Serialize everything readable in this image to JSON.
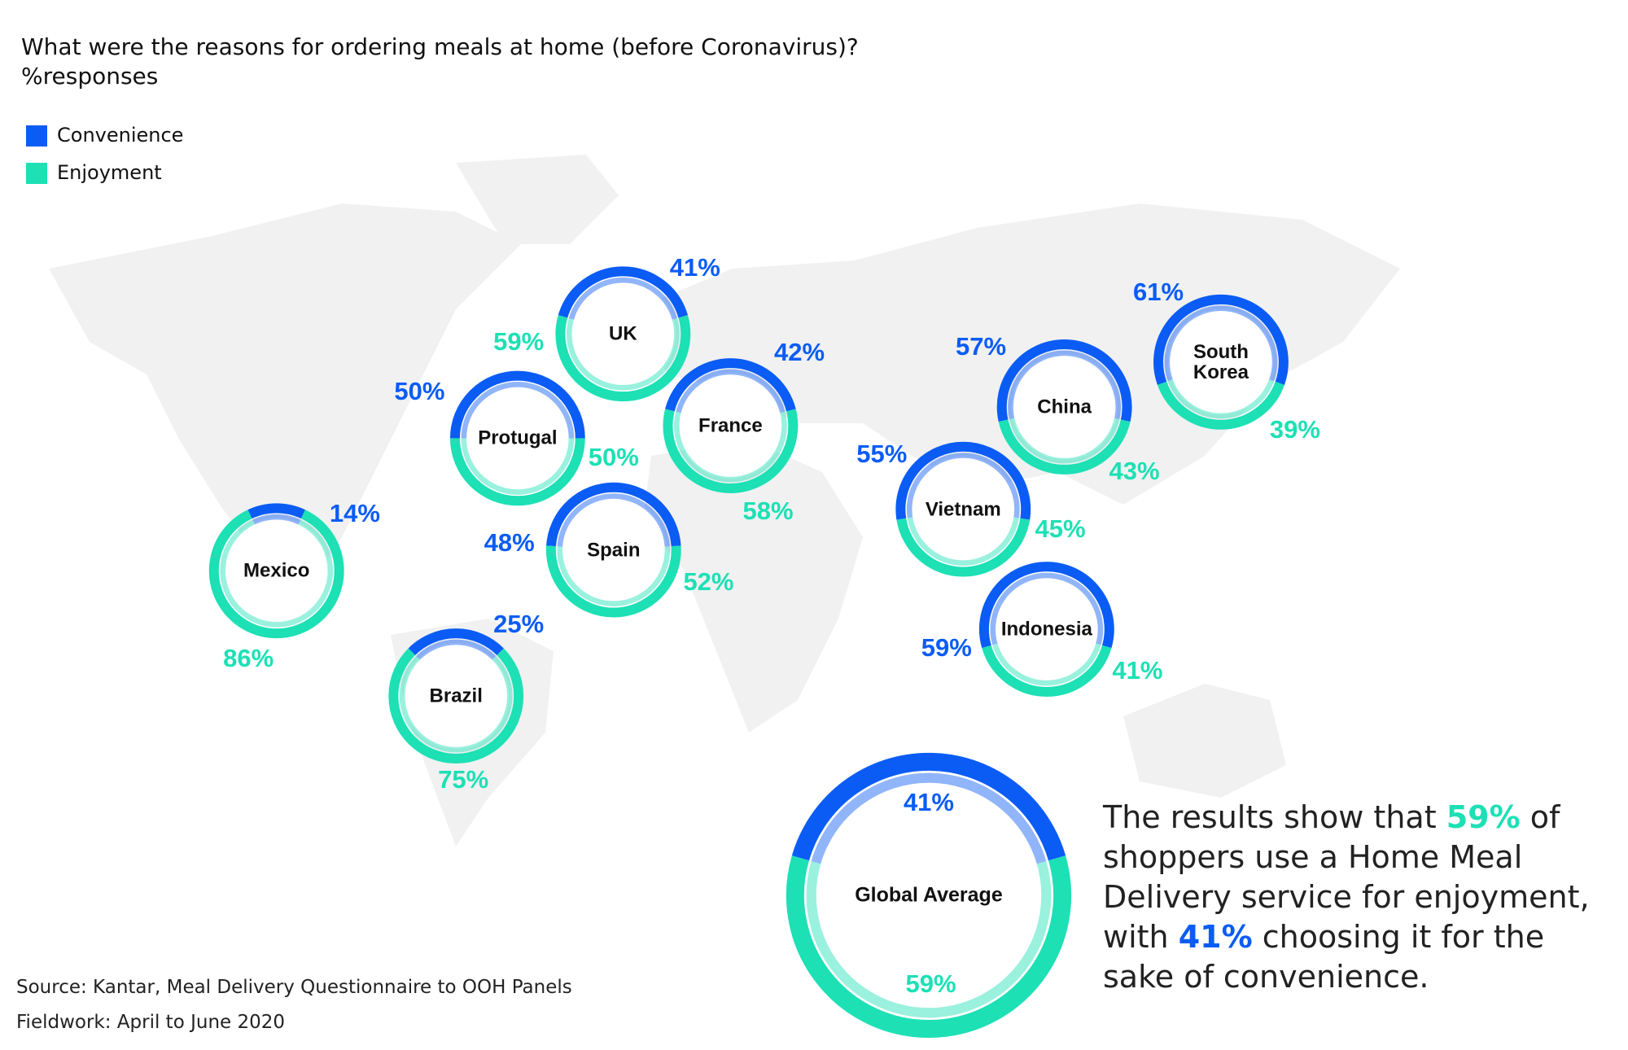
{
  "chart_data": {
    "type": "donut",
    "title": "What were the reasons for ordering meals at home (before Coronavirus)?",
    "subtitle": "%responses",
    "categories": [
      "UK",
      "Protugal",
      "France",
      "Spain",
      "Mexico",
      "Brazil",
      "China",
      "South Korea",
      "Vietnam",
      "Indonesia",
      "Global Average"
    ],
    "series": [
      {
        "name": "Convenience",
        "color": "#0a5cf5",
        "values": [
          41,
          50,
          42,
          48,
          14,
          25,
          57,
          61,
          55,
          59,
          41
        ],
        "value_labels": [
          "41%",
          "50%",
          "42%",
          "48%",
          "14%",
          "25%",
          "57%",
          "61%",
          "55%",
          "59%",
          "41%"
        ]
      },
      {
        "name": "Enjoyment",
        "color": "#1de0b5",
        "values": [
          59,
          50,
          58,
          52,
          86,
          75,
          43,
          39,
          45,
          41,
          59
        ],
        "value_labels": [
          "59%",
          "50%",
          "58%",
          "52%",
          "86%",
          "75%",
          "43%",
          "39%",
          "45%",
          "41%",
          "59%"
        ]
      }
    ],
    "annotation": [
      "The results show that ",
      "59%",
      " of shoppers use a Home Meal Delivery service for enjoyment, with ",
      "41%",
      " choosing it for the sake of convenience."
    ],
    "source": "Source: Kantar, Meal Delivery Questionnaire to OOH Panels",
    "fieldwork": "Fieldwork: April to June 2020"
  }
}
